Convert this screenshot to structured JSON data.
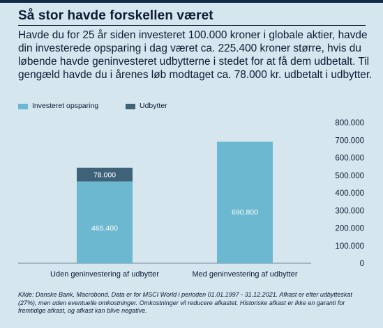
{
  "header": {
    "title": "Så stor havde forskellen været",
    "intro": "Havde du for 25 år siden investeret 100.000 kroner i globale aktier, havde din investerede opsparing i dag været ca. 225.400 kroner større, hvis du løbende havde geninvesteret udbytterne i stedet for at få dem udbetalt. Til gengæld havde du i årenes løb modtaget ca. 78.000 kr. udbetalt i udbytter."
  },
  "colors": {
    "background": "#d6e6ef",
    "invested": "#6cb8d1",
    "dividends": "#3f6279",
    "text": "#0d1b33"
  },
  "chart_data": {
    "type": "bar",
    "stacked": true,
    "categories": [
      "Uden geninvestering af udbytter",
      "Med geninvestering af udbytter"
    ],
    "series": [
      {
        "name": "Investeret opsparing",
        "values": [
          465400,
          690800
        ],
        "labels": [
          "465.400",
          "690.800"
        ],
        "color": "#6cb8d1"
      },
      {
        "name": "Udbytter",
        "values": [
          78000,
          0
        ],
        "labels": [
          "78.000",
          ""
        ],
        "color": "#3f6279"
      }
    ],
    "ylim": [
      0,
      800000
    ],
    "yticks": [
      0,
      100000,
      200000,
      300000,
      400000,
      500000,
      600000,
      700000,
      800000
    ],
    "ytick_labels": [
      "0",
      "100.000",
      "200.000",
      "300.000",
      "400.000",
      "500.000",
      "600.000",
      "700.000",
      "800.000"
    ],
    "y_axis_side": "right",
    "grid": false,
    "legend": "top-left"
  },
  "footnote": "Kilde: Danske Bank, Macrobond. Data er for MSCI World i perioden 01.01.1997 - 31.12.2021. Afkast er efter udbytteskat (27%), men uden eventuelle omkostninger. Omkostninger vil reducere afkastet. Historiske afkast er ikke en garanti for fremtidige afkast, og afkast kan blive negative."
}
